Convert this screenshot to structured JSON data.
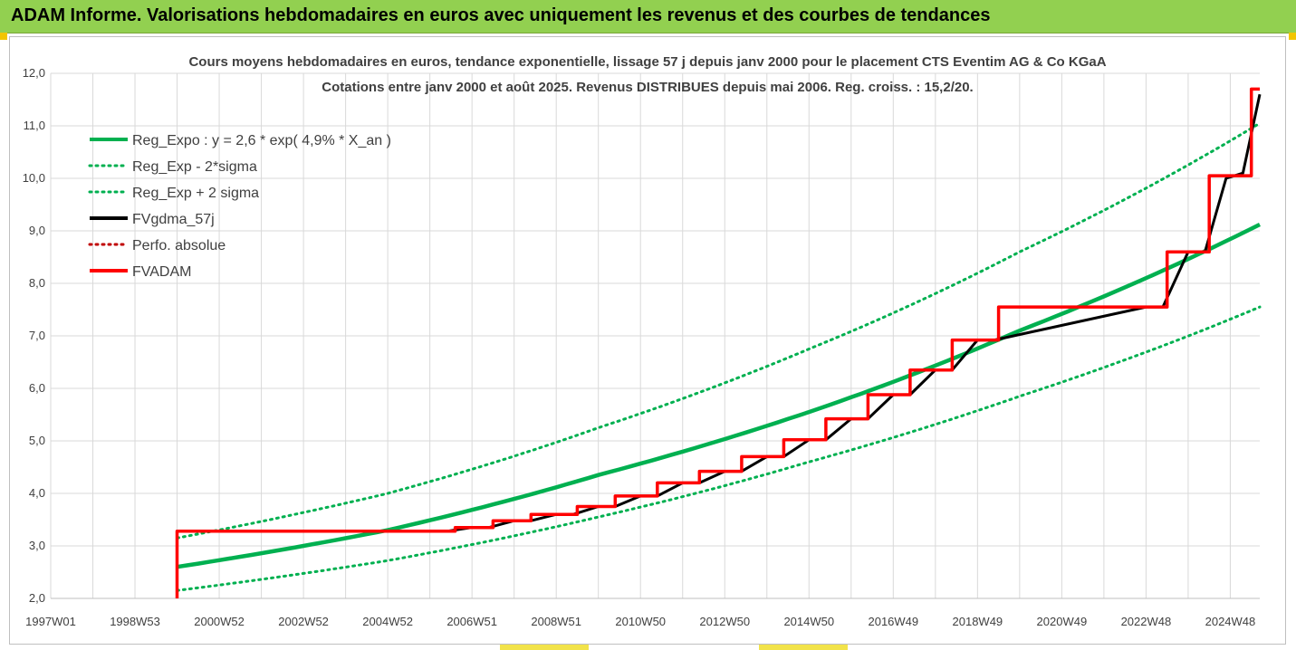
{
  "banner": {
    "title": "ADAM Informe. Valorisations hebdomadaires en euros avec uniquement les revenus et des courbes de tendances"
  },
  "colors": {
    "banner_bg": "#92d050",
    "green": "#00b050",
    "black": "#000000",
    "red": "#ff0000",
    "grid": "#d9d9d9"
  },
  "chart_data": {
    "type": "line",
    "title": "Cours moyens hebdomadaires en euros, tendance exponentielle, lissage 57 j depuis janv 2000  pour le placement CTS Eventim AG & Co KGaA",
    "subtitle": "Cotations entre janv 2000 et août 2025.  Revenus DISTRIBUES depuis mai 2006. Reg. croiss. : 15,2/20.",
    "xlabel": "",
    "ylabel": "",
    "ylim": [
      2.0,
      12.0
    ],
    "y_ticks": [
      "2,0",
      "3,0",
      "4,0",
      "5,0",
      "6,0",
      "7,0",
      "8,0",
      "9,0",
      "10,0",
      "11,0",
      "12,0"
    ],
    "x_range": [
      1997.0,
      2025.7
    ],
    "x_ticks": [
      {
        "label": "1997W01",
        "x": 1997.0
      },
      {
        "label": "1998W53",
        "x": 1999.0
      },
      {
        "label": "2000W52",
        "x": 2001.0
      },
      {
        "label": "2002W52",
        "x": 2003.0
      },
      {
        "label": "2004W52",
        "x": 2005.0
      },
      {
        "label": "2006W51",
        "x": 2007.0
      },
      {
        "label": "2008W51",
        "x": 2009.0
      },
      {
        "label": "2010W50",
        "x": 2011.0
      },
      {
        "label": "2012W50",
        "x": 2013.0
      },
      {
        "label": "2014W50",
        "x": 2015.0
      },
      {
        "label": "2016W49",
        "x": 2017.0
      },
      {
        "label": "2018W49",
        "x": 2019.0
      },
      {
        "label": "2020W49",
        "x": 2021.0
      },
      {
        "label": "2022W48",
        "x": 2023.0
      },
      {
        "label": "2024W48",
        "x": 2025.0
      }
    ],
    "grid": true,
    "legend_position": "top-left",
    "series": [
      {
        "name": "Reg_Expo : y = 2,6 * exp( 4,9% *  X_an )",
        "color": "#00b050",
        "style": "solid",
        "x": [
          2000.0,
          2005.0,
          2010.0,
          2015.0,
          2020.0,
          2025.7
        ],
        "values": [
          2.6,
          3.3,
          4.35,
          5.55,
          7.1,
          9.12
        ]
      },
      {
        "name": "Reg_Exp - 2*sigma",
        "color": "#00b050",
        "style": "dotted",
        "x": [
          2000.0,
          2005.0,
          2010.0,
          2015.0,
          2020.0,
          2025.7
        ],
        "values": [
          2.15,
          2.72,
          3.55,
          4.6,
          5.85,
          7.55
        ]
      },
      {
        "name": "Reg_Exp + 2 sigma",
        "color": "#00b050",
        "style": "dotted",
        "x": [
          2000.0,
          2005.0,
          2010.0,
          2015.0,
          2020.0,
          2025.7
        ],
        "values": [
          3.15,
          4.0,
          5.25,
          6.75,
          8.6,
          11.05
        ]
      },
      {
        "name": "FVgdma_57j",
        "color": "#000000",
        "style": "solid",
        "x": [
          2000.0,
          2006.4,
          2007.0,
          2007.4,
          2008.0,
          2008.4,
          2009.0,
          2009.4,
          2010.0,
          2010.4,
          2011.0,
          2011.4,
          2012.0,
          2012.4,
          2013.0,
          2013.4,
          2014.0,
          2014.4,
          2015.0,
          2015.4,
          2016.0,
          2016.4,
          2017.0,
          2017.4,
          2018.0,
          2018.4,
          2019.0,
          2019.4,
          2023.0,
          2023.4,
          2024.0,
          2024.4,
          2024.9,
          2025.3,
          2025.7
        ],
        "values": [
          3.28,
          3.28,
          3.35,
          3.35,
          3.48,
          3.48,
          3.6,
          3.6,
          3.75,
          3.75,
          3.95,
          3.95,
          4.2,
          4.2,
          4.42,
          4.42,
          4.7,
          4.7,
          5.02,
          5.02,
          5.42,
          5.42,
          5.88,
          5.88,
          6.35,
          6.35,
          6.92,
          6.92,
          7.55,
          7.55,
          8.6,
          8.6,
          10.0,
          10.1,
          11.6
        ]
      },
      {
        "name": "Perfo. absolue",
        "color": "#c00000",
        "style": "dotted",
        "x": [],
        "values": []
      },
      {
        "name": "FVADAM",
        "color": "#ff0000",
        "style": "step",
        "x": [
          2000.0,
          2000.0,
          2006.6,
          2007.5,
          2008.4,
          2009.5,
          2010.4,
          2011.4,
          2012.4,
          2013.4,
          2014.4,
          2015.4,
          2016.4,
          2017.4,
          2018.4,
          2019.5,
          2023.5,
          2024.5,
          2025.5,
          2025.7
        ],
        "values": [
          2.0,
          3.28,
          3.35,
          3.48,
          3.6,
          3.75,
          3.95,
          4.2,
          4.42,
          4.7,
          5.02,
          5.42,
          5.88,
          6.35,
          6.92,
          7.55,
          8.6,
          10.05,
          11.7,
          11.7
        ]
      }
    ]
  }
}
